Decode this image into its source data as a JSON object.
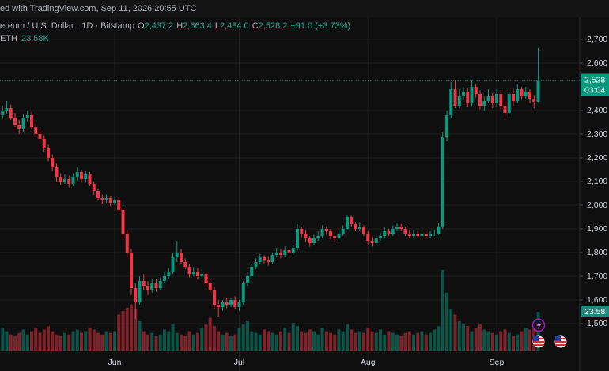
{
  "chart_data": {
    "type": "candlestick",
    "header": "ed with TradingView.com, Sep 11, 2026 20:55 UTC",
    "symbol": "ereum / U.S. Dollar · 1D · Bitstamp",
    "legend_items": [
      {
        "key": "O",
        "value": "2,437.2"
      },
      {
        "key": "H",
        "value": "2,663.4"
      },
      {
        "key": "L",
        "value": "2,434.0"
      },
      {
        "key": "C",
        "value": "2,528.2"
      }
    ],
    "change_label": "+91.0 (+3.73%)",
    "volume_label": "ETH",
    "volume_value_label": "23.58K",
    "price_tag": "2,528",
    "countdown": "03:04",
    "volume_tag": "23.58",
    "up_color": "#089981",
    "down_color": "#f23645",
    "grid": true,
    "categories": [
      null,
      null,
      null,
      null,
      null,
      null,
      null,
      null,
      null,
      null,
      null,
      null,
      null,
      null,
      null,
      null,
      null,
      null,
      null,
      null,
      null,
      null,
      null,
      null,
      null,
      null,
      null,
      "Jun",
      null,
      null,
      null,
      null,
      null,
      null,
      null,
      null,
      null,
      null,
      null,
      null,
      null,
      null,
      null,
      null,
      null,
      null,
      null,
      null,
      null,
      null,
      null,
      null,
      null,
      null,
      null,
      null,
      null,
      "Jul",
      null,
      null,
      null,
      null,
      null,
      null,
      null,
      null,
      null,
      null,
      null,
      null,
      null,
      null,
      null,
      null,
      null,
      null,
      null,
      null,
      null,
      null,
      null,
      null,
      null,
      null,
      null,
      null,
      null,
      null,
      "Aug",
      null,
      null,
      null,
      null,
      null,
      null,
      null,
      null,
      null,
      null,
      null,
      null,
      null,
      null,
      null,
      null,
      null,
      null,
      null,
      null,
      null,
      null,
      null,
      null,
      null,
      null,
      null,
      null,
      null,
      null,
      "Sep",
      null,
      null,
      null,
      null,
      null,
      null,
      null,
      null,
      null,
      null
    ],
    "open": [
      2380,
      2400,
      2410,
      2370,
      2340,
      2320,
      2370,
      2380,
      2330,
      2300,
      2280,
      2240,
      2200,
      2160,
      2120,
      2100,
      2110,
      2090,
      2120,
      2140,
      2110,
      2130,
      2090,
      2060,
      2030,
      2020,
      2030,
      2010,
      2020,
      1980,
      1880,
      1800,
      1650,
      1590,
      1680,
      1660,
      1640,
      1670,
      1650,
      1680,
      1700,
      1720,
      1780,
      1800,
      1760,
      1740,
      1710,
      1720,
      1700,
      1710,
      1670,
      1640,
      1580,
      1570,
      1590,
      1580,
      1600,
      1570,
      1590,
      1670,
      1700,
      1740,
      1760,
      1780,
      1770,
      1760,
      1790,
      1800,
      1790,
      1810,
      1800,
      1820,
      1900,
      1880,
      1860,
      1840,
      1860,
      1870,
      1900,
      1890,
      1870,
      1860,
      1880,
      1900,
      1950,
      1920,
      1900,
      1910,
      1880,
      1850,
      1840,
      1860,
      1870,
      1890,
      1880,
      1900,
      1910,
      1900,
      1880,
      1870,
      1880,
      1870,
      1880,
      1870,
      1880,
      1880,
      1910,
      2290,
      2380,
      2490,
      2420,
      2460,
      2480,
      2430,
      2500,
      2470,
      2420,
      2440,
      2460,
      2430,
      2470,
      2420,
      2390,
      2470,
      2440,
      2490,
      2460,
      2480,
      2450,
      2437.2
    ],
    "high": [
      2420,
      2440,
      2425,
      2390,
      2360,
      2385,
      2400,
      2395,
      2345,
      2320,
      2295,
      2255,
      2215,
      2175,
      2135,
      2130,
      2125,
      2135,
      2160,
      2150,
      2145,
      2140,
      2100,
      2070,
      2045,
      2045,
      2040,
      2035,
      2030,
      1990,
      1895,
      1815,
      1670,
      1700,
      1710,
      1680,
      1690,
      1690,
      1695,
      1720,
      1735,
      1800,
      1850,
      1815,
      1775,
      1750,
      1740,
      1735,
      1730,
      1720,
      1690,
      1655,
      1600,
      1600,
      1610,
      1610,
      1615,
      1600,
      1680,
      1720,
      1750,
      1775,
      1795,
      1790,
      1785,
      1800,
      1820,
      1815,
      1825,
      1820,
      1830,
      1920,
      1910,
      1895,
      1870,
      1875,
      1890,
      1915,
      1910,
      1900,
      1885,
      1895,
      1915,
      1960,
      1955,
      1930,
      1925,
      1915,
      1890,
      1865,
      1875,
      1885,
      1905,
      1900,
      1915,
      1925,
      1920,
      1910,
      1895,
      1895,
      1890,
      1895,
      1890,
      1890,
      1895,
      1925,
      2310,
      2400,
      2520,
      2530,
      2490,
      2500,
      2495,
      2530,
      2510,
      2485,
      2460,
      2490,
      2475,
      2490,
      2485,
      2440,
      2480,
      2490,
      2510,
      2500,
      2500,
      2490,
      2465,
      2663.4
    ],
    "low": [
      2365,
      2385,
      2360,
      2330,
      2300,
      2310,
      2355,
      2320,
      2290,
      2270,
      2225,
      2185,
      2145,
      2100,
      2085,
      2090,
      2075,
      2080,
      2105,
      2095,
      2095,
      2080,
      2045,
      2020,
      2005,
      2010,
      1995,
      2000,
      1970,
      1860,
      1780,
      1620,
      1520,
      1580,
      1640,
      1620,
      1630,
      1635,
      1640,
      1670,
      1690,
      1710,
      1760,
      1750,
      1730,
      1695,
      1700,
      1685,
      1690,
      1655,
      1630,
      1560,
      1530,
      1555,
      1565,
      1570,
      1560,
      1555,
      1580,
      1660,
      1690,
      1730,
      1750,
      1755,
      1745,
      1750,
      1780,
      1775,
      1780,
      1785,
      1790,
      1810,
      1865,
      1845,
      1825,
      1830,
      1850,
      1860,
      1875,
      1855,
      1845,
      1850,
      1870,
      1895,
      1910,
      1890,
      1890,
      1870,
      1835,
      1825,
      1830,
      1850,
      1860,
      1870,
      1870,
      1890,
      1890,
      1870,
      1860,
      1860,
      1860,
      1860,
      1860,
      1860,
      1870,
      1875,
      1900,
      2270,
      2370,
      2410,
      2410,
      2445,
      2415,
      2420,
      2455,
      2405,
      2400,
      2430,
      2410,
      2415,
      2400,
      2370,
      2380,
      2420,
      2430,
      2445,
      2450,
      2430,
      2410,
      2434.0
    ],
    "close": [
      2400,
      2410,
      2370,
      2340,
      2320,
      2370,
      2380,
      2330,
      2300,
      2280,
      2240,
      2200,
      2160,
      2120,
      2100,
      2110,
      2090,
      2120,
      2140,
      2110,
      2130,
      2090,
      2060,
      2030,
      2020,
      2030,
      2010,
      2020,
      1980,
      1880,
      1800,
      1650,
      1590,
      1680,
      1660,
      1640,
      1670,
      1650,
      1680,
      1700,
      1720,
      1780,
      1800,
      1760,
      1740,
      1710,
      1720,
      1700,
      1710,
      1670,
      1640,
      1580,
      1570,
      1590,
      1580,
      1600,
      1570,
      1590,
      1670,
      1700,
      1740,
      1760,
      1780,
      1770,
      1760,
      1790,
      1800,
      1790,
      1810,
      1800,
      1820,
      1900,
      1880,
      1860,
      1840,
      1860,
      1870,
      1900,
      1890,
      1870,
      1860,
      1880,
      1900,
      1950,
      1920,
      1900,
      1910,
      1880,
      1850,
      1840,
      1860,
      1870,
      1890,
      1880,
      1900,
      1910,
      1900,
      1880,
      1870,
      1880,
      1870,
      1880,
      1870,
      1880,
      1880,
      1910,
      2290,
      2380,
      2490,
      2420,
      2460,
      2480,
      2430,
      2500,
      2470,
      2420,
      2440,
      2460,
      2430,
      2470,
      2420,
      2390,
      2470,
      2440,
      2490,
      2460,
      2480,
      2450,
      2437.2,
      2528.2
    ],
    "volume": [
      14,
      12,
      10,
      9,
      11,
      13,
      10,
      12,
      14,
      11,
      13,
      15,
      12,
      10,
      9,
      11,
      10,
      12,
      13,
      11,
      12,
      14,
      13,
      11,
      10,
      12,
      11,
      12,
      22,
      24,
      26,
      28,
      25,
      18,
      12,
      10,
      11,
      9,
      10,
      13,
      12,
      16,
      11,
      10,
      9,
      12,
      10,
      11,
      14,
      16,
      20,
      15,
      12,
      10,
      11,
      9,
      10,
      14,
      16,
      18,
      12,
      11,
      10,
      13,
      12,
      11,
      10,
      12,
      14,
      11,
      17,
      15,
      12,
      11,
      13,
      12,
      10,
      14,
      12,
      11,
      10,
      13,
      12,
      16,
      13,
      11,
      12,
      11,
      14,
      12,
      11,
      13,
      10,
      12,
      11,
      10,
      9,
      11,
      12,
      10,
      11,
      12,
      10,
      11,
      13,
      15,
      48.6,
      35,
      25,
      22,
      18,
      16,
      15,
      12,
      14,
      16,
      13,
      12,
      11,
      10,
      12,
      13,
      11,
      9,
      10,
      12,
      14,
      13,
      15,
      23.58
    ],
    "volume_lim": [
      0,
      210
    ],
    "ylim": [
      1383.3,
      2866.7
    ],
    "yticks": [
      {
        "value": 2700,
        "label": "2,700"
      },
      {
        "value": 2600,
        "label": "2,600"
      },
      {
        "value": 2400,
        "label": "2,400"
      },
      {
        "value": 2300,
        "label": "2,300"
      },
      {
        "value": 2200,
        "label": "2,200"
      },
      {
        "value": 2100,
        "label": "2,100"
      },
      {
        "value": 2000,
        "label": "2,000"
      },
      {
        "value": 1900,
        "label": "1,900"
      },
      {
        "value": 1800,
        "label": "1,800"
      },
      {
        "value": 1700,
        "label": "1,700"
      },
      {
        "value": 1600,
        "label": "1,600"
      },
      {
        "value": 1500,
        "label": "1,500"
      }
    ]
  }
}
